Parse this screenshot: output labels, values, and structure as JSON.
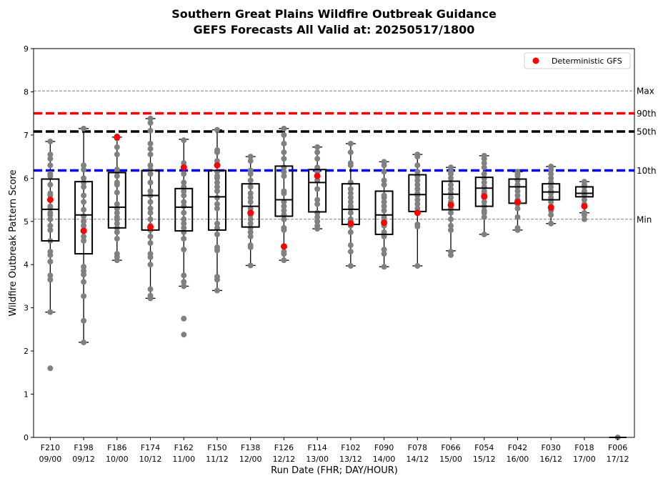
{
  "chart_data": {
    "type": "box",
    "title": "Southern Great Plains Wildfire Outbreak Guidance",
    "subtitle": "GEFS Forecasts All Valid at: 20250517/1800",
    "xlabel": "Run Date (FHR; DAY/HOUR)",
    "ylabel": "Wildfire Outbreak Pattern Score",
    "ylim": [
      0,
      9
    ],
    "yticks": [
      "0",
      "1",
      "2",
      "3",
      "4",
      "5",
      "6",
      "7",
      "8",
      "9"
    ],
    "categories": [
      {
        "fhr": "F210",
        "run": "09/00"
      },
      {
        "fhr": "F198",
        "run": "09/12"
      },
      {
        "fhr": "F186",
        "run": "10/00"
      },
      {
        "fhr": "F174",
        "run": "10/12"
      },
      {
        "fhr": "F162",
        "run": "11/00"
      },
      {
        "fhr": "F150",
        "run": "11/12"
      },
      {
        "fhr": "F138",
        "run": "12/00"
      },
      {
        "fhr": "F126",
        "run": "12/12"
      },
      {
        "fhr": "F114",
        "run": "13/00"
      },
      {
        "fhr": "F102",
        "run": "13/12"
      },
      {
        "fhr": "F090",
        "run": "14/00"
      },
      {
        "fhr": "F078",
        "run": "14/12"
      },
      {
        "fhr": "F066",
        "run": "15/00"
      },
      {
        "fhr": "F054",
        "run": "15/12"
      },
      {
        "fhr": "F042",
        "run": "16/00"
      },
      {
        "fhr": "F030",
        "run": "16/12"
      },
      {
        "fhr": "F018",
        "run": "17/00"
      },
      {
        "fhr": "F006",
        "run": "17/12"
      }
    ],
    "boxes": [
      {
        "q1": 4.55,
        "median": 5.28,
        "q3": 5.98,
        "whisker_low": 2.9,
        "whisker_high": 6.85
      },
      {
        "q1": 4.25,
        "median": 5.15,
        "q3": 5.92,
        "whisker_low": 2.2,
        "whisker_high": 7.15
      },
      {
        "q1": 4.85,
        "median": 5.33,
        "q3": 6.13,
        "whisker_low": 4.1,
        "whisker_high": 6.95
      },
      {
        "q1": 4.8,
        "median": 5.6,
        "q3": 6.18,
        "whisker_low": 3.22,
        "whisker_high": 7.38
      },
      {
        "q1": 4.78,
        "median": 5.33,
        "q3": 5.76,
        "whisker_low": 3.5,
        "whisker_high": 6.9
      },
      {
        "q1": 4.8,
        "median": 5.57,
        "q3": 6.18,
        "whisker_low": 3.4,
        "whisker_high": 7.12
      },
      {
        "q1": 4.87,
        "median": 5.35,
        "q3": 5.87,
        "whisker_low": 3.98,
        "whisker_high": 6.5
      },
      {
        "q1": 5.12,
        "median": 5.5,
        "q3": 6.28,
        "whisker_low": 4.1,
        "whisker_high": 7.15
      },
      {
        "q1": 5.22,
        "median": 5.9,
        "q3": 6.2,
        "whisker_low": 4.83,
        "whisker_high": 6.72
      },
      {
        "q1": 4.93,
        "median": 5.28,
        "q3": 5.87,
        "whisker_low": 3.97,
        "whisker_high": 6.8
      },
      {
        "q1": 4.7,
        "median": 5.15,
        "q3": 5.7,
        "whisker_low": 3.95,
        "whisker_high": 6.38
      },
      {
        "q1": 5.23,
        "median": 5.62,
        "q3": 6.08,
        "whisker_low": 3.97,
        "whisker_high": 6.55
      },
      {
        "q1": 5.27,
        "median": 5.63,
        "q3": 5.93,
        "whisker_low": 4.32,
        "whisker_high": 6.25
      },
      {
        "q1": 5.35,
        "median": 5.77,
        "q3": 6.02,
        "whisker_low": 4.7,
        "whisker_high": 6.52
      },
      {
        "q1": 5.42,
        "median": 5.8,
        "q3": 5.98,
        "whisker_low": 4.8,
        "whisker_high": 6.15
      },
      {
        "q1": 5.5,
        "median": 5.68,
        "q3": 5.87,
        "whisker_low": 4.95,
        "whisker_high": 6.27
      },
      {
        "q1": 5.57,
        "median": 5.65,
        "q3": 5.8,
        "whisker_low": 5.2,
        "whisker_high": 5.92
      },
      {
        "q1": 0.0,
        "median": 0.0,
        "q3": 0.0,
        "whisker_low": 0.0,
        "whisker_high": 0.0
      }
    ],
    "members": [
      [
        1.6,
        2.9,
        3.65,
        3.75,
        4.07,
        4.22,
        4.3,
        4.55,
        4.8,
        4.9,
        5.05,
        5.15,
        5.2,
        5.3,
        5.35,
        5.5,
        5.6,
        5.65,
        5.85,
        6.05,
        6.1,
        6.3,
        6.45,
        6.55,
        6.85
      ],
      [
        2.2,
        2.7,
        3.27,
        3.6,
        3.77,
        3.85,
        3.95,
        4.55,
        4.65,
        4.8,
        4.9,
        5.0,
        5.12,
        5.27,
        5.45,
        5.6,
        5.8,
        5.9,
        6.0,
        6.2,
        6.3,
        7.15
      ],
      [
        4.1,
        4.18,
        4.25,
        4.6,
        4.75,
        4.85,
        4.95,
        5.05,
        5.1,
        5.2,
        5.3,
        5.4,
        5.67,
        5.85,
        5.9,
        6.05,
        6.15,
        6.2,
        6.55,
        6.72,
        6.92,
        6.97
      ],
      [
        3.22,
        3.28,
        3.43,
        4.0,
        4.17,
        4.25,
        4.5,
        4.65,
        4.8,
        4.9,
        5.05,
        5.2,
        5.3,
        5.45,
        5.6,
        5.7,
        5.9,
        6.1,
        6.2,
        6.3,
        6.55,
        6.68,
        6.8,
        7.1,
        7.28,
        7.38
      ],
      [
        2.38,
        2.75,
        3.5,
        3.6,
        3.75,
        4.35,
        4.6,
        4.75,
        4.85,
        4.95,
        5.05,
        5.2,
        5.35,
        5.45,
        5.6,
        5.7,
        5.8,
        5.9,
        6.1,
        6.25,
        6.35,
        6.88
      ],
      [
        3.4,
        3.65,
        3.72,
        4.33,
        4.4,
        4.7,
        4.85,
        4.95,
        5.3,
        5.4,
        5.55,
        5.7,
        5.8,
        5.9,
        6.0,
        6.05,
        6.15,
        6.4,
        6.6,
        6.65,
        7.12
      ],
      [
        3.98,
        4.4,
        4.45,
        4.65,
        4.75,
        4.85,
        4.95,
        5.05,
        5.15,
        5.3,
        5.45,
        5.55,
        5.65,
        5.8,
        5.95,
        6.1,
        6.18,
        6.4,
        6.5
      ],
      [
        4.1,
        4.25,
        4.3,
        4.8,
        4.85,
        5.05,
        5.15,
        5.25,
        5.35,
        5.45,
        5.65,
        5.7,
        6.05,
        6.15,
        6.25,
        6.45,
        6.6,
        6.8,
        7.0,
        7.15
      ],
      [
        4.83,
        4.9,
        5.0,
        5.1,
        5.2,
        5.4,
        5.5,
        5.75,
        5.95,
        6.05,
        6.15,
        6.25,
        6.45,
        6.6,
        6.72
      ],
      [
        3.97,
        4.3,
        4.45,
        4.75,
        4.9,
        5.0,
        5.05,
        5.2,
        5.3,
        5.35,
        5.45,
        5.55,
        5.65,
        5.75,
        5.9,
        6.3,
        6.35,
        6.6,
        6.8
      ],
      [
        3.95,
        4.25,
        4.35,
        4.65,
        4.75,
        4.9,
        5.0,
        5.1,
        5.25,
        5.35,
        5.45,
        5.55,
        5.6,
        5.85,
        5.95,
        6.15,
        6.3,
        6.38
      ],
      [
        3.97,
        4.88,
        4.93,
        5.2,
        5.3,
        5.4,
        5.5,
        5.6,
        5.65,
        5.75,
        5.85,
        5.95,
        6.05,
        6.15,
        6.3,
        6.5,
        6.55
      ],
      [
        4.22,
        4.3,
        4.8,
        4.9,
        5.05,
        5.2,
        5.3,
        5.45,
        5.55,
        5.65,
        5.75,
        5.85,
        6.0,
        6.1,
        6.15,
        6.25
      ],
      [
        4.7,
        5.1,
        5.2,
        5.25,
        5.35,
        5.45,
        5.55,
        5.65,
        5.7,
        5.8,
        5.9,
        6.0,
        6.1,
        6.25,
        6.35,
        6.45,
        6.52
      ],
      [
        4.8,
        4.85,
        5.1,
        5.3,
        5.4,
        5.5,
        5.6,
        5.7,
        5.8,
        5.85,
        5.95,
        6.05,
        6.1,
        6.15
      ],
      [
        4.95,
        5.15,
        5.25,
        5.35,
        5.45,
        5.55,
        5.65,
        5.7,
        5.8,
        5.9,
        6.0,
        6.1,
        6.2,
        6.27
      ],
      [
        5.05,
        5.15,
        5.2,
        5.4,
        5.5,
        5.6,
        5.7,
        5.8,
        5.85,
        5.92
      ],
      [
        0.0
      ]
    ],
    "deterministic": [
      5.5,
      4.78,
      6.95,
      4.87,
      6.25,
      6.3,
      5.2,
      4.42,
      6.05,
      4.95,
      4.97,
      5.2,
      5.38,
      5.58,
      5.45,
      5.32,
      5.35,
      null
    ],
    "reference_lines": [
      {
        "label": "Max",
        "value": 8.02,
        "style": "dashed-thin",
        "color": "#808080"
      },
      {
        "label": "90th",
        "value": 7.5,
        "style": "dashed-thick",
        "color": "#ff0000"
      },
      {
        "label": "50th",
        "value": 7.08,
        "style": "dashed-thick",
        "color": "#000000"
      },
      {
        "label": "10th",
        "value": 6.18,
        "style": "dashed-thick",
        "color": "#0000ff"
      },
      {
        "label": "Min",
        "value": 5.05,
        "style": "dashed-thin",
        "color": "#808080"
      }
    ],
    "legend": {
      "position": "top-right",
      "entries": [
        {
          "label": "Deterministic GFS",
          "color": "#ff0000",
          "marker": "circle"
        }
      ]
    },
    "colors": {
      "member": "#808080",
      "deterministic": "#ff0000",
      "box": "#000000"
    },
    "grid": false
  }
}
